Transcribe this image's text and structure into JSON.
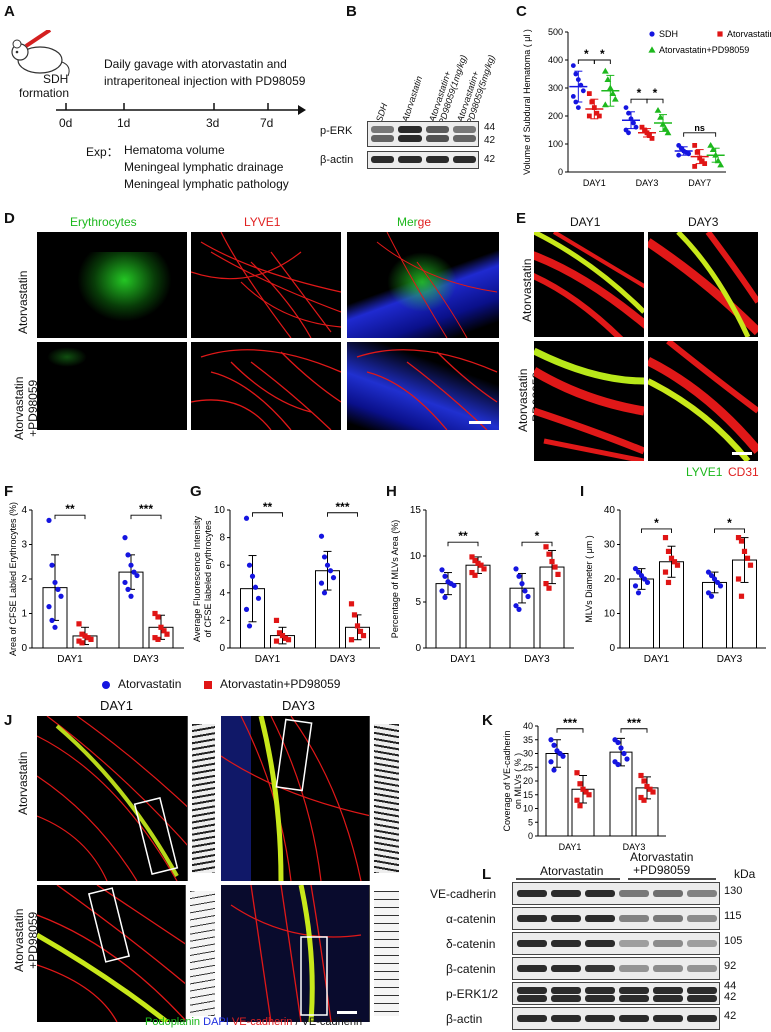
{
  "panels": {
    "A": "A",
    "B": "B",
    "C": "C",
    "D": "D",
    "E": "E",
    "F": "F",
    "G": "G",
    "H": "H",
    "I": "I",
    "J": "J",
    "K": "K",
    "L": "L"
  },
  "panelA": {
    "sdh": "SDH",
    "formation": "formation",
    "treatment_line1": "Daily gavage with atorvastatin and",
    "treatment_line2": "intraperitoneal injection with PD98059",
    "days": [
      "0d",
      "1d",
      "3d",
      "7d"
    ],
    "exp_label": "Exp：",
    "exp_items": [
      "Hematoma volume",
      "Meningeal lymphatic drainage",
      "Meningeal lymphatic pathology"
    ]
  },
  "panelB": {
    "lanes": [
      "SDH",
      "Atorvastatin",
      "Atorvastatin+\nPD98059(1mg/kg)",
      "Atorvastatin+\nPD98059(5mg/kg)"
    ],
    "rows": [
      "p-ERK",
      "β-actin"
    ],
    "kda": [
      "44",
      "42",
      "42"
    ]
  },
  "panelC": {
    "ylabel": "Volume of Subdural Hematoma ( μl )",
    "legend": [
      "SDH",
      "Atorvastatin",
      "Atorvastatin+PD98059"
    ],
    "sig": [
      "*",
      "*",
      "*",
      "*",
      "ns"
    ]
  },
  "panelD": {
    "columns": [
      "Erythrocytes",
      "LYVE1",
      "Merge"
    ],
    "merge_parts": [
      "Mer",
      "ge"
    ],
    "rows": [
      "Atorvastatin",
      "Atorvastatin\n+PD98059"
    ]
  },
  "panelE": {
    "columns": [
      "DAY1",
      "DAY3"
    ],
    "rows": [
      "Atorvastatin",
      "Atorvastatin\n+PD98059"
    ],
    "legend_green": "LYVE1",
    "legend_red": "CD31"
  },
  "panelJ": {
    "columns": [
      "DAY1",
      "DAY3"
    ],
    "rows": [
      "Atorvastatin",
      "Atorvastatin\n+PD98059"
    ],
    "legend": [
      "Podoplanin",
      "DAPI",
      "VE-cadherin",
      "/ VE-cadherin"
    ]
  },
  "panelL": {
    "groups": [
      "Atorvastatin",
      "Atorvastatin\n+PD98059"
    ],
    "kda_label": "kDa",
    "rows": [
      {
        "name": "VE-cadherin",
        "kda": "130"
      },
      {
        "name": "α-catenin",
        "kda": "115"
      },
      {
        "name": "δ-catenin",
        "kda": "105"
      },
      {
        "name": "β-catenin",
        "kda": "92"
      },
      {
        "name": "p-ERK1/2",
        "kda": "44\n42"
      },
      {
        "name": "β-actin",
        "kda": "42"
      }
    ]
  },
  "legendFI": {
    "series": [
      "Atorvastatin",
      "Atorvastatin+PD98059"
    ],
    "colors": [
      "#1515e0",
      "#e01515"
    ]
  },
  "chart_data": [
    {
      "id": "C",
      "type": "scatter",
      "ylabel": "Volume of Subdural Hematoma ( μl )",
      "categories": [
        "DAY1",
        "DAY3",
        "DAY7"
      ],
      "ylim": [
        0,
        500
      ],
      "yticks": [
        0,
        100,
        200,
        300,
        400,
        500
      ],
      "series": [
        {
          "name": "SDH",
          "color": "#1515e0",
          "marker": "circle",
          "mean": [
            305,
            185,
            75
          ],
          "sd": [
            55,
            30,
            15
          ],
          "points": [
            [
              380,
              350,
              330,
              310,
              290,
              270,
              250,
              230
            ],
            [
              230,
              210,
              190,
              175,
              160,
              150,
              140
            ],
            [
              95,
              85,
              75,
              70,
              65,
              60
            ]
          ]
        },
        {
          "name": "Atorvastatin",
          "color": "#e01515",
          "marker": "square",
          "mean": [
            225,
            140,
            55
          ],
          "sd": [
            35,
            15,
            25
          ],
          "points": [
            [
              280,
              250,
              230,
              210,
              200,
              200
            ],
            [
              160,
              150,
              140,
              130,
              120
            ],
            [
              95,
              70,
              50,
              40,
              30,
              20
            ]
          ]
        },
        {
          "name": "Atorvastatin+PD98059",
          "color": "#1db81d",
          "marker": "triangle",
          "mean": [
            290,
            175,
            60
          ],
          "sd": [
            55,
            30,
            25
          ],
          "points": [
            [
              360,
              330,
              300,
              280,
              260,
              240
            ],
            [
              220,
              195,
              170,
              155,
              140
            ],
            [
              95,
              80,
              60,
              40,
              25
            ]
          ]
        }
      ],
      "sig": [
        {
          "cat": 0,
          "from": 0,
          "to": 1,
          "y": 400,
          "label": "*"
        },
        {
          "cat": 0,
          "from": 1,
          "to": 2,
          "y": 400,
          "label": "*"
        },
        {
          "cat": 1,
          "from": 0,
          "to": 1,
          "y": 260,
          "label": "*"
        },
        {
          "cat": 1,
          "from": 1,
          "to": 2,
          "y": 260,
          "label": "*"
        },
        {
          "cat": 2,
          "from": 0,
          "to": 2,
          "y": 140,
          "label": "ns"
        }
      ]
    },
    {
      "id": "F",
      "type": "bar",
      "ylabel": "Area of CFSE Labled Erythrocytes (%)",
      "categories": [
        "DAY1",
        "DAY3"
      ],
      "ylim": [
        0,
        4
      ],
      "yticks": [
        0,
        1,
        2,
        3,
        4
      ],
      "series": [
        {
          "name": "Atorvastatin",
          "color": "#1515e0",
          "marker": "circle",
          "mean": [
            1.75,
            2.2
          ],
          "sd": [
            0.95,
            0.5
          ],
          "points": [
            [
              3.7,
              2.4,
              1.9,
              1.7,
              1.5,
              1.2,
              0.8,
              0.6
            ],
            [
              3.2,
              2.7,
              2.4,
              2.2,
              2.1,
              1.9,
              1.7,
              1.5
            ]
          ]
        },
        {
          "name": "Atorvastatin+PD98059",
          "color": "#e01515",
          "marker": "square",
          "mean": [
            0.35,
            0.6
          ],
          "sd": [
            0.25,
            0.35
          ],
          "points": [
            [
              0.7,
              0.4,
              0.35,
              0.3,
              0.25,
              0.2,
              0.15
            ],
            [
              1.0,
              0.9,
              0.6,
              0.5,
              0.4,
              0.3,
              0.25
            ]
          ]
        }
      ],
      "sig": [
        {
          "cat": 0,
          "y": 3.85,
          "label": "**"
        },
        {
          "cat": 1,
          "y": 3.85,
          "label": "***"
        }
      ]
    },
    {
      "id": "G",
      "type": "bar",
      "ylabel": "Average Fluorescence Intensity\nof CFSE labeled erythrocytes",
      "categories": [
        "DAY1",
        "DAY3"
      ],
      "ylim": [
        0,
        10
      ],
      "yticks": [
        0,
        2,
        4,
        6,
        8,
        10
      ],
      "series": [
        {
          "name": "Atorvastatin",
          "color": "#1515e0",
          "marker": "circle",
          "mean": [
            4.3,
            5.6
          ],
          "sd": [
            2.4,
            1.4
          ],
          "points": [
            [
              9.4,
              6.0,
              5.2,
              4.4,
              3.6,
              2.8,
              1.6
            ],
            [
              8.1,
              6.6,
              6.0,
              5.6,
              5.1,
              4.7,
              4.0
            ]
          ]
        },
        {
          "name": "Atorvastatin+PD98059",
          "color": "#e01515",
          "marker": "square",
          "mean": [
            0.9,
            1.5
          ],
          "sd": [
            0.6,
            0.9
          ],
          "points": [
            [
              2.0,
              1.1,
              0.9,
              0.7,
              0.6,
              0.5
            ],
            [
              3.2,
              2.4,
              1.6,
              1.2,
              0.9,
              0.6
            ]
          ]
        }
      ],
      "sig": [
        {
          "cat": 0,
          "y": 9.8,
          "label": "**"
        },
        {
          "cat": 1,
          "y": 9.8,
          "label": "***"
        }
      ]
    },
    {
      "id": "H",
      "type": "bar",
      "ylabel": "Percentage of MLVs Area (%)",
      "categories": [
        "DAY1",
        "DAY3"
      ],
      "ylim": [
        0,
        15
      ],
      "yticks": [
        0,
        5,
        10,
        15
      ],
      "series": [
        {
          "name": "Atorvastatin",
          "color": "#1515e0",
          "marker": "circle",
          "mean": [
            7.0,
            6.5
          ],
          "sd": [
            1.2,
            1.6
          ],
          "points": [
            [
              8.5,
              7.8,
              7.2,
              7.0,
              6.8,
              6.2,
              5.5
            ],
            [
              8.6,
              7.8,
              7.0,
              6.2,
              5.6,
              4.6,
              4.2
            ]
          ]
        },
        {
          "name": "Atorvastatin+PD98059",
          "color": "#e01515",
          "marker": "square",
          "mean": [
            9.0,
            8.8
          ],
          "sd": [
            0.9,
            1.8
          ],
          "points": [
            [
              9.9,
              9.5,
              9.2,
              9.0,
              8.6,
              8.2,
              7.9
            ],
            [
              11.0,
              10.2,
              9.4,
              8.8,
              8.0,
              7.0,
              6.5
            ]
          ]
        }
      ],
      "sig": [
        {
          "cat": 0,
          "y": 11.5,
          "label": "**"
        },
        {
          "cat": 1,
          "y": 11.5,
          "label": "*"
        }
      ]
    },
    {
      "id": "I",
      "type": "bar",
      "ylabel": "MLVs Diameter ( μm )",
      "categories": [
        "DAY1",
        "DAY3"
      ],
      "ylim": [
        0,
        40
      ],
      "yticks": [
        0,
        10,
        20,
        30,
        40
      ],
      "series": [
        {
          "name": "Atorvastatin",
          "color": "#1515e0",
          "marker": "circle",
          "mean": [
            20,
            19
          ],
          "sd": [
            3,
            3
          ],
          "points": [
            [
              23,
              22,
              21,
              20,
              19,
              18,
              16
            ],
            [
              22,
              21,
              20,
              19,
              18,
              16,
              15
            ]
          ]
        },
        {
          "name": "Atorvastatin+PD98059",
          "color": "#e01515",
          "marker": "square",
          "mean": [
            25,
            25.5
          ],
          "sd": [
            4.5,
            6.5
          ],
          "points": [
            [
              32,
              28,
              26,
              25,
              24,
              22,
              19
            ],
            [
              32,
              31,
              28,
              26,
              24,
              20,
              15
            ]
          ]
        }
      ],
      "sig": [
        {
          "cat": 0,
          "y": 34.5,
          "label": "*"
        },
        {
          "cat": 1,
          "y": 34.5,
          "label": "*"
        }
      ]
    },
    {
      "id": "K",
      "type": "bar",
      "ylabel": "Coverage of VE-cadherin\non MLVs ( % )",
      "categories": [
        "DAY1",
        "DAY3"
      ],
      "ylim": [
        0,
        40
      ],
      "yticks": [
        0,
        5,
        10,
        15,
        20,
        25,
        30,
        35,
        40
      ],
      "series": [
        {
          "name": "Atorvastatin",
          "color": "#1515e0",
          "marker": "circle",
          "mean": [
            30,
            30.5
          ],
          "sd": [
            5,
            5
          ],
          "points": [
            [
              35,
              33,
              31,
              30,
              29,
              27,
              24
            ],
            [
              35,
              34,
              32,
              30,
              28,
              27,
              26
            ]
          ]
        },
        {
          "name": "Atorvastatin+PD98059",
          "color": "#e01515",
          "marker": "square",
          "mean": [
            17,
            17.5
          ],
          "sd": [
            5,
            4
          ],
          "points": [
            [
              23,
              19,
              17,
              16,
              15,
              13,
              11
            ],
            [
              22,
              20,
              18,
              17,
              16,
              14,
              13
            ]
          ]
        }
      ],
      "sig": [
        {
          "cat": 0,
          "y": 39,
          "label": "***"
        },
        {
          "cat": 1,
          "y": 39,
          "label": "***"
        }
      ]
    }
  ]
}
